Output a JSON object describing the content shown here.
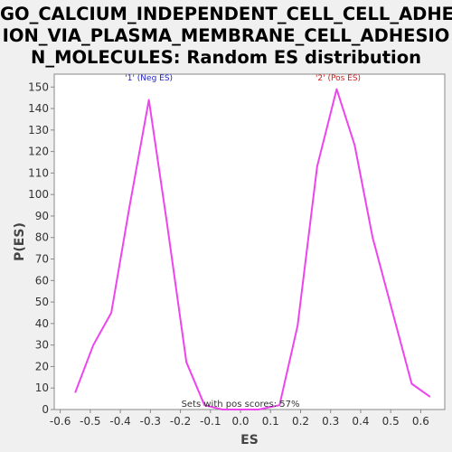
{
  "chart_data": {
    "type": "line",
    "title_lines": [
      "GO_CALCIUM_INDEPENDENT_CELL_CELL_ADHES",
      "ION_VIA_PLASMA_MEMBRANE_CELL_ADHESIO",
      "N_MOLECULES: Random ES distribution"
    ],
    "xlabel": "ES",
    "ylabel": "P(ES)",
    "xlim": [
      -0.62,
      0.68
    ],
    "ylim": [
      0,
      156
    ],
    "xticks": [
      -0.6,
      -0.5,
      -0.4,
      -0.3,
      -0.2,
      -0.1,
      0.0,
      0.1,
      0.2,
      0.3,
      0.4,
      0.5,
      0.6
    ],
    "xtick_labels": [
      "-0.6",
      "-0.5",
      "-0.4",
      "-0.3",
      "-0.2",
      "-0.1",
      "0.0",
      "0.1",
      "0.2",
      "0.3",
      "0.4",
      "0.5",
      "0.6"
    ],
    "yticks": [
      0,
      10,
      20,
      30,
      40,
      50,
      60,
      70,
      80,
      90,
      100,
      110,
      120,
      130,
      140,
      150
    ],
    "ytick_labels": [
      "0",
      "10",
      "20",
      "30",
      "40",
      "50",
      "60",
      "70",
      "80",
      "90",
      "100",
      "110",
      "120",
      "130",
      "140",
      "150"
    ],
    "grid": false,
    "series": [
      {
        "color": "#ee44ee",
        "x": [
          -0.55,
          -0.49,
          -0.43,
          -0.37,
          -0.305,
          -0.245,
          -0.18,
          -0.12,
          -0.06,
          0.0,
          0.06,
          0.13,
          0.19,
          0.255,
          0.32,
          0.38,
          0.44,
          0.505,
          0.57,
          0.63
        ],
        "y": [
          8,
          30,
          45,
          94,
          144,
          87,
          22,
          2,
          0,
          0,
          0,
          2,
          39,
          113,
          149,
          123,
          80,
          46,
          12,
          6
        ]
      }
    ],
    "annotations": [
      {
        "text": "'1' (Neg ES)",
        "x": -0.305,
        "y": 153,
        "color": "#2222cc"
      },
      {
        "text": "'2' (Pos ES)",
        "x": 0.325,
        "y": 153,
        "color": "#cc2222"
      },
      {
        "text": "Sets with pos scores: 57%",
        "x": 0.0,
        "y": 1.3,
        "color": "#333333"
      }
    ]
  },
  "colors": {
    "background": "#f0f0f0",
    "plot_background": "#ffffff",
    "axis": "#888888"
  }
}
